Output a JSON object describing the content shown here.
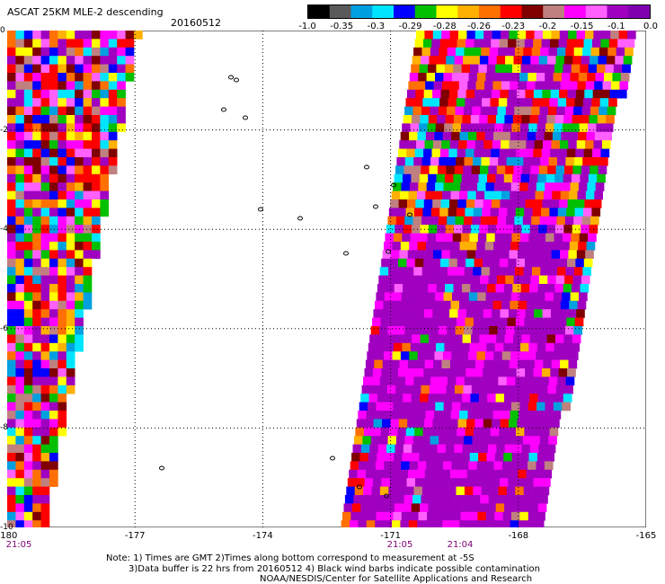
{
  "title": "ASCAT 25KM MLE-2 descending",
  "date": "20160512",
  "colorbar": {
    "labels": [
      "-1.0",
      "-0.35",
      "-0.3",
      "-0.29",
      "-0.28",
      "-0.26",
      "-0.23",
      "-0.2",
      "-0.15",
      "-0.1",
      "0.0"
    ],
    "colors": [
      "#000000",
      "#5a5a5a",
      "#00a0e0",
      "#00e5ff",
      "#0000ff",
      "#00c000",
      "#ffff00",
      "#ffb000",
      "#ff7000",
      "#ff0000",
      "#800000",
      "#c08080",
      "#ff00ff",
      "#ff60ff",
      "#a000c0",
      "#8000b0"
    ]
  },
  "x_axis": {
    "ticks": [
      "-180",
      "-177",
      "-174",
      "-171",
      "-168",
      "-165"
    ]
  },
  "y_axis": {
    "ticks": [
      "0",
      "-2",
      "-4",
      "-6",
      "-8",
      "-10"
    ]
  },
  "times": [
    "21:05",
    "21:05",
    "21:04"
  ],
  "notes": [
    "Note: 1) Times are GMT 2)Times along bottom correspond to measurement at -5S",
    "3)Data buffer is 22 hrs from 20160512 4) Black wind barbs indicate possible contamination",
    "NOAA/NESDIS/Center for Satellite Applications and Research"
  ]
}
